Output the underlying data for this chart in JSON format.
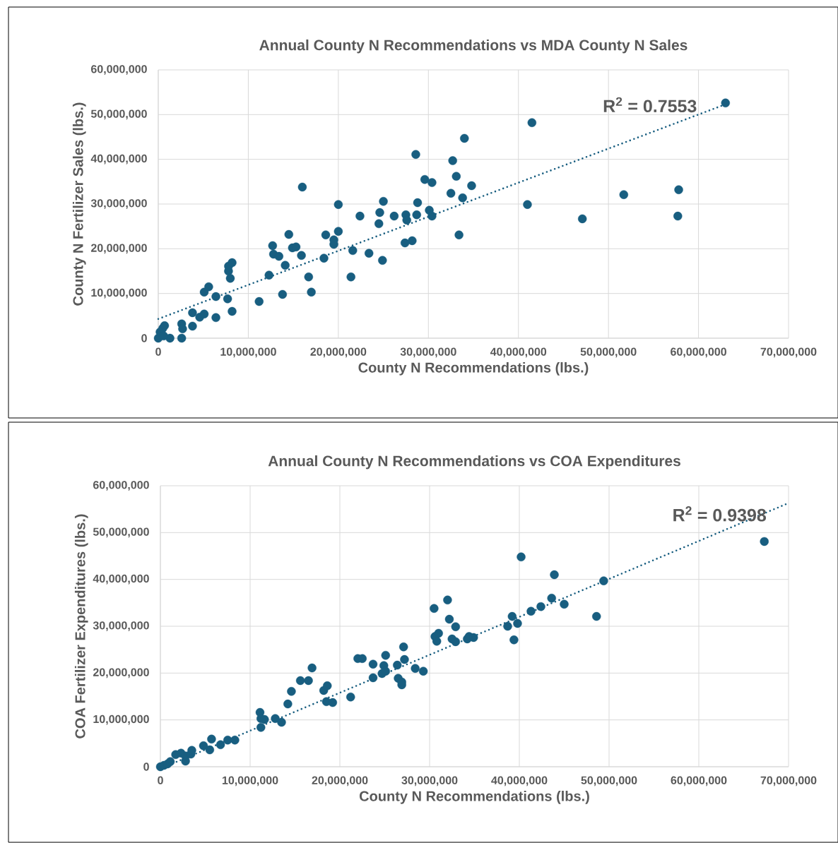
{
  "chart_data": [
    {
      "type": "scatter",
      "title": "Annual County N Recommendations vs MDA County N Sales",
      "xlabel": "County N Recommendations (lbs.)",
      "ylabel": "County N Fertilizer Sales (lbs.)",
      "xlim": [
        0,
        70000000
      ],
      "ylim": [
        0,
        60000000
      ],
      "xticks": [
        0,
        {
          "value": 10000000,
          "label": "10,000,000"
        },
        {
          "value": 20000000,
          "label": "20,000,000"
        },
        {
          "value": 30000000,
          "label": "30,000,000"
        },
        {
          "value": 40000000,
          "label": "40,000,000"
        },
        {
          "value": 50000000,
          "label": "50,000,000"
        },
        {
          "value": 60000000,
          "label": "60,000,000"
        },
        {
          "value": 70000000,
          "label": "70,000,000"
        }
      ],
      "yticks": [
        0,
        {
          "value": 10000000,
          "label": "10,000,000"
        },
        {
          "value": 20000000,
          "label": "20,000,000"
        },
        {
          "value": 30000000,
          "label": "30,000,000"
        },
        {
          "value": 40000000,
          "label": "40,000,000"
        },
        {
          "value": 50000000,
          "label": "50,000,000"
        },
        {
          "value": 60000000,
          "label": "60,000,000"
        }
      ],
      "grid": true,
      "annotations": [
        "R$^{2}$ = 0.7553"
      ],
      "series": [
        {
          "type": "scatter",
          "color": "#185e80",
          "marker": "circle",
          "x": [
            0,
            200000.0,
            500000.0,
            700000.0,
            1300000.0,
            600000.0,
            2600000.0,
            2700000.0,
            2600000.0,
            3800000.0,
            3800000.0,
            4600000.0,
            5100000.0,
            5100000.0,
            5600000.0,
            6400000.0,
            6400000.0,
            7700000.0,
            7800000.0,
            7800000.0,
            8000000.0,
            8200000.0,
            8200000.0,
            11200000.0,
            12300000.0,
            12700000.0,
            12800000.0,
            13400000.0,
            13800000.0,
            14100000.0,
            14500000.0,
            14900000.0,
            15300000.0,
            15900000.0,
            16000000.0,
            16700000.0,
            17000000.0,
            18400000.0,
            18600000.0,
            19500000.0,
            19500000.0,
            20000000.0,
            20000000.0,
            21400000.0,
            21600000.0,
            22400000.0,
            23400000.0,
            24500000.0,
            24600000.0,
            24900000.0,
            25000000.0,
            26200000.0,
            27500000.0,
            27600000.0,
            27400000.0,
            28200000.0,
            28600000.0,
            28700000.0,
            28800000.0,
            29600000.0,
            30100000.0,
            30400000.0,
            30400000.0,
            32500000.0,
            32700000.0,
            33100000.0,
            33400000.0,
            33800000.0,
            34000000.0,
            34800000.0,
            41000000.0,
            41500000.0,
            47100000.0,
            51700000.0,
            57700000.0,
            57800000.0,
            63000000.0
          ],
          "values": [
            0,
            1400000.0,
            2200000.0,
            2800000.0,
            0,
            500000.0,
            3200000.0,
            2100000.0,
            0,
            2700000.0,
            5700000.0,
            4700000.0,
            5400000.0,
            10300000.0,
            11500000.0,
            9300000.0,
            4600000.0,
            8800000.0,
            15000000.0,
            16100000.0,
            13400000.0,
            16900000.0,
            6000000.0,
            8200000.0,
            14100000.0,
            20700000.0,
            18800000.0,
            18300000.0,
            9800000.0,
            16300000.0,
            23200000.0,
            20200000.0,
            20400000.0,
            18500000.0,
            33800000.0,
            13700000.0,
            10300000.0,
            17900000.0,
            23100000.0,
            21000000.0,
            22000000.0,
            23900000.0,
            29900000.0,
            13700000.0,
            19600000.0,
            27300000.0,
            19000000.0,
            25600000.0,
            28100000.0,
            17400000.0,
            30600000.0,
            27300000.0,
            27600000.0,
            26400000.0,
            21300000.0,
            21800000.0,
            41100000.0,
            27600000.0,
            30300000.0,
            35500000.0,
            28600000.0,
            34800000.0,
            27300000.0,
            32400000.0,
            39700000.0,
            36200000.0,
            23100000.0,
            31400000.0,
            44700000.0,
            34100000.0,
            29900000.0,
            48200000.0,
            26700000.0,
            32100000.0,
            27300000.0,
            33200000.0,
            52600000.0
          ]
        },
        {
          "type": "line",
          "color": "#185e80",
          "marker": "none",
          "line_style": "dotted",
          "x": [
            0,
            63000000.0
          ],
          "values": [
            4300000.0,
            52300000.0
          ]
        }
      ]
    },
    {
      "type": "scatter",
      "title": "Annual County N Recommendations vs COA Expenditures",
      "xlabel": "County N Recommendations (lbs.)",
      "ylabel": "COA Fertilizer Expenditures (lbs.)",
      "xlim": [
        0,
        70000000
      ],
      "ylim": [
        0,
        60000000
      ],
      "xticks": [
        0,
        {
          "value": 10000000,
          "label": "10,000,000"
        },
        {
          "value": 20000000,
          "label": "20,000,000"
        },
        {
          "value": 30000000,
          "label": "30,000,000"
        },
        {
          "value": 40000000,
          "label": "40,000,000"
        },
        {
          "value": 50000000,
          "label": "50,000,000"
        },
        {
          "value": 60000000,
          "label": "60,000,000"
        },
        {
          "value": 70000000,
          "label": "70,000,000"
        }
      ],
      "yticks": [
        0,
        {
          "value": 10000000,
          "label": "10,000,000"
        },
        {
          "value": 20000000,
          "label": "20,000,000"
        },
        {
          "value": 30000000,
          "label": "30,000,000"
        },
        {
          "value": 40000000,
          "label": "40,000,000"
        },
        {
          "value": 50000000,
          "label": "50,000,000"
        },
        {
          "value": 60000000,
          "label": "60,000,000"
        }
      ],
      "grid": true,
      "annotations": [
        "R$^{2}$ = 0.9398"
      ],
      "series": [
        {
          "type": "scatter",
          "color": "#185e80",
          "marker": "circle",
          "x": [
            0,
            400000.0,
            800000.0,
            1100000.0,
            1700000.0,
            2300000.0,
            2800000.0,
            2800000.0,
            3400000.0,
            3500000.0,
            4800000.0,
            5500000.0,
            5700000.0,
            6700000.0,
            7500000.0,
            8300000.0,
            11100000.0,
            11200000.0,
            11200000.0,
            11600000.0,
            12800000.0,
            13500000.0,
            14200000.0,
            14600000.0,
            15600000.0,
            16500000.0,
            16900000.0,
            18200000.0,
            18600000.0,
            18500000.0,
            19200000.0,
            21200000.0,
            22000000.0,
            22500000.0,
            23700000.0,
            23700000.0,
            24700000.0,
            24900000.0,
            25100000.0,
            25100000.0,
            26400000.0,
            26500000.0,
            26900000.0,
            26900000.0,
            27100000.0,
            27200000.0,
            28400000.0,
            29300000.0,
            30500000.0,
            30600000.0,
            30800000.0,
            31000000.0,
            32000000.0,
            32200000.0,
            32500000.0,
            32900000.0,
            32900000.0,
            34200000.0,
            34400000.0,
            34900000.0,
            38700000.0,
            39200000.0,
            39400000.0,
            39800000.0,
            40200000.0,
            41300000.0,
            42400000.0,
            43600000.0,
            43900000.0,
            45000000.0,
            48600000.0,
            49400000.0,
            67300000.0
          ],
          "values": [
            0,
            300000.0,
            600000.0,
            1100000.0,
            2600000.0,
            2900000.0,
            2300000.0,
            1200000.0,
            2700000.0,
            3500000.0,
            4500000.0,
            3600000.0,
            5900000.0,
            4700000.0,
            5700000.0,
            5700000.0,
            11600000.0,
            10300000.0,
            8400000.0,
            10100000.0,
            10300000.0,
            9500000.0,
            13400000.0,
            16100000.0,
            18400000.0,
            18400000.0,
            21100000.0,
            16300000.0,
            17300000.0,
            13900000.0,
            13700000.0,
            14900000.0,
            23100000.0,
            23100000.0,
            19000000.0,
            21900000.0,
            19900000.0,
            21600000.0,
            23800000.0,
            20400000.0,
            21700000.0,
            18900000.0,
            17500000.0,
            18100000.0,
            25600000.0,
            22900000.0,
            21000000.0,
            20400000.0,
            33800000.0,
            27800000.0,
            26800000.0,
            28500000.0,
            35600000.0,
            31500000.0,
            27300000.0,
            29900000.0,
            26700000.0,
            27300000.0,
            27800000.0,
            27600000.0,
            30000000.0,
            32100000.0,
            27100000.0,
            30600000.0,
            44800000.0,
            33200000.0,
            34200000.0,
            36000000.0,
            41000000.0,
            34700000.0,
            32100000.0,
            39700000.0,
            48100000.0
          ]
        },
        {
          "type": "line",
          "color": "#185e80",
          "marker": "none",
          "line_style": "dotted",
          "x": [
            500000.0,
            70000000
          ],
          "values": [
            0,
            56300000.0
          ]
        }
      ]
    }
  ]
}
